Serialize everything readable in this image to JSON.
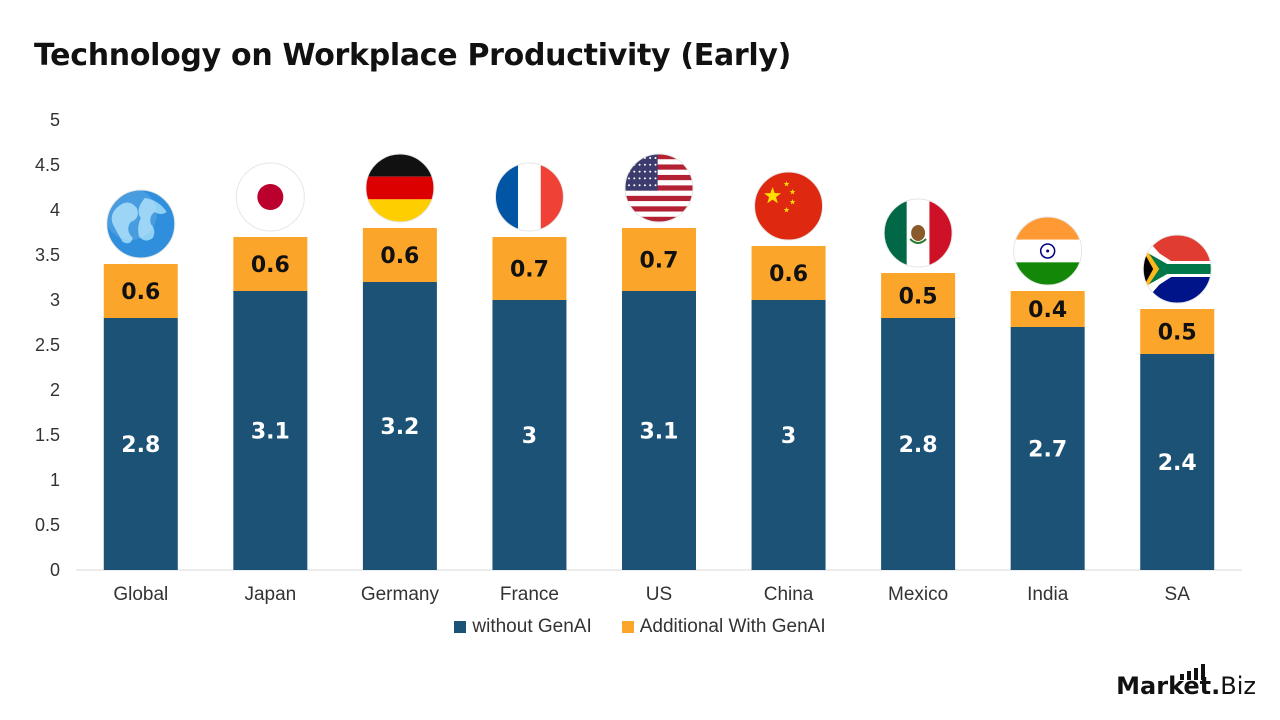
{
  "colors": {
    "base": "#1c5276",
    "additional": "#fba52a",
    "axis": "#d9d9d9"
  },
  "legend": {
    "base_label": "without GenAI",
    "additional_label": "Additional With GenAI"
  },
  "brand": {
    "name": "Market",
    "dot": ".",
    "tld": "Biz"
  },
  "chart_data": {
    "type": "bar",
    "stacked": true,
    "title": "Technology on Workplace Productivity (Early)",
    "categories": [
      "Global",
      "Japan",
      "Germany",
      "France",
      "US",
      "China",
      "Mexico",
      "India",
      "SA"
    ],
    "flag_icons": [
      "globe-icon",
      "japan-flag-icon",
      "germany-flag-icon",
      "france-flag-icon",
      "us-flag-icon",
      "china-flag-icon",
      "mexico-flag-icon",
      "india-flag-icon",
      "south-africa-flag-icon"
    ],
    "series": [
      {
        "name": "without GenAI",
        "values": [
          2.8,
          3.1,
          3.2,
          3,
          3.1,
          3,
          2.8,
          2.7,
          2.4
        ]
      },
      {
        "name": "Additional With GenAI",
        "values": [
          0.6,
          0.6,
          0.6,
          0.7,
          0.7,
          0.6,
          0.5,
          0.4,
          0.5
        ]
      }
    ],
    "ylim": [
      0,
      5
    ],
    "yticks": [
      "0",
      "0.5",
      "1",
      "1.5",
      "2",
      "2.5",
      "3",
      "3.5",
      "4",
      "4.5",
      "5"
    ],
    "xlabel": "",
    "ylabel": "",
    "grid": false,
    "legend_position": "bottom"
  }
}
